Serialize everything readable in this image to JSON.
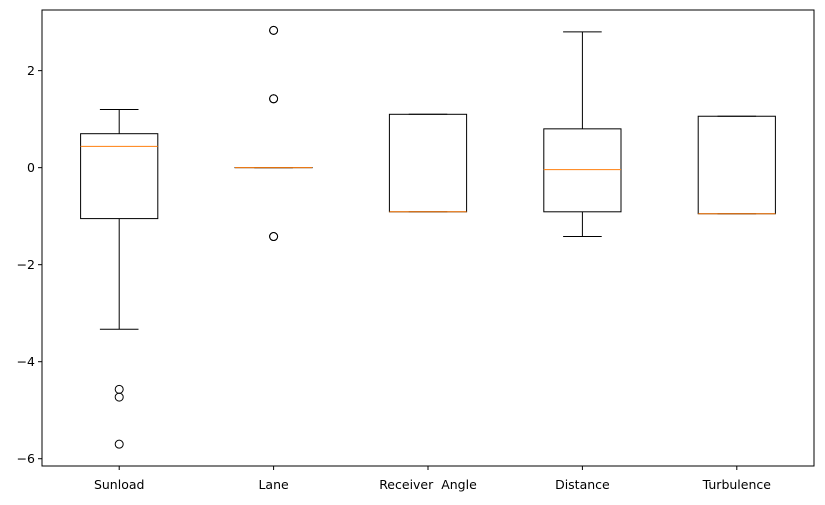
{
  "chart_data": {
    "type": "boxplot",
    "title": "",
    "xlabel": "",
    "ylabel": "",
    "ylim": [
      -6.15,
      3.25
    ],
    "yticks": [
      2,
      0,
      -2,
      -4,
      -6
    ],
    "ytick_labels": [
      "2",
      "0",
      "−2",
      "−4",
      "−6"
    ],
    "grid": false,
    "categories": [
      "Sunload",
      "Lane",
      "Receiver  Angle",
      "Distance",
      "Turbulence"
    ],
    "boxes": [
      {
        "name": "Sunload",
        "whisker_low": -3.33,
        "q1": -1.05,
        "median": 0.44,
        "q3": 0.7,
        "whisker_high": 1.2,
        "outliers": [
          -4.57,
          -4.73,
          -5.7
        ]
      },
      {
        "name": "Lane",
        "whisker_low": 0.0,
        "q1": 0.0,
        "median": 0.0,
        "q3": 0.0,
        "whisker_high": 0.0,
        "outliers": [
          2.83,
          2.83,
          1.42,
          1.42,
          -1.42,
          -1.42
        ]
      },
      {
        "name": "Receiver  Angle",
        "whisker_low": -0.91,
        "q1": -0.91,
        "median": -0.91,
        "q3": 1.1,
        "whisker_high": 1.1,
        "outliers": []
      },
      {
        "name": "Distance",
        "whisker_low": -1.42,
        "q1": -0.91,
        "median": -0.04,
        "q3": 0.8,
        "whisker_high": 2.8,
        "outliers": []
      },
      {
        "name": "Turbulence",
        "whisker_low": -0.95,
        "q1": -0.95,
        "median": -0.95,
        "q3": 1.06,
        "whisker_high": 1.06,
        "outliers": []
      }
    ],
    "colors": {
      "box": "#000000",
      "median": "#ff7f0e",
      "outlier": "#000000"
    }
  }
}
